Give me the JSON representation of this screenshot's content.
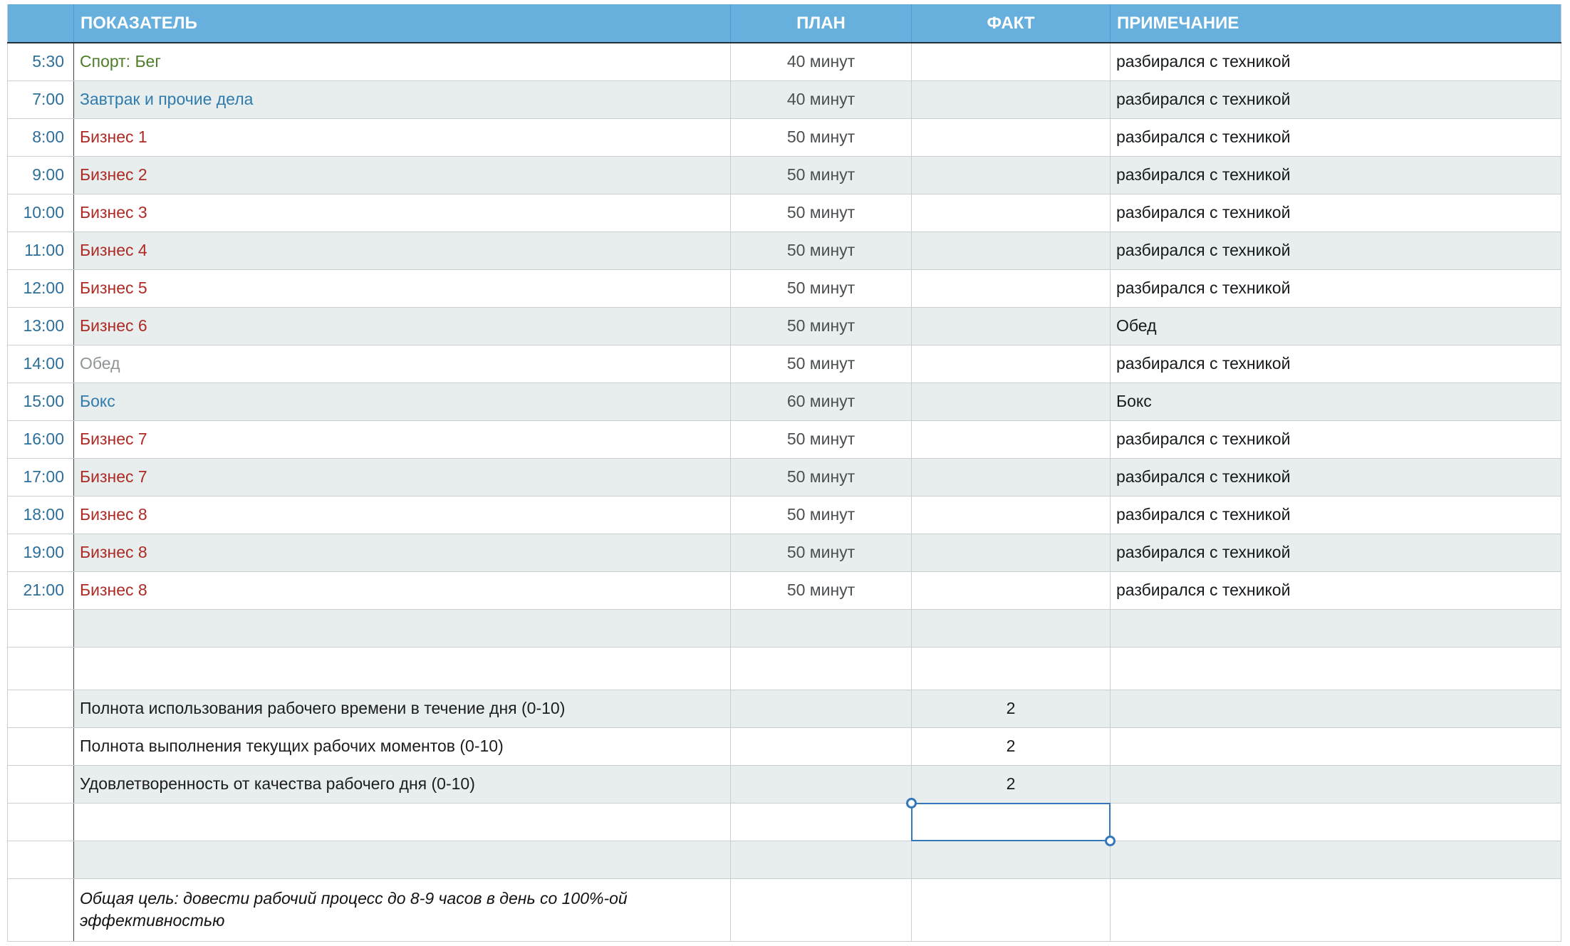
{
  "colors": {
    "header_bg": "#67AFDC",
    "header_text": "#FFFFFF",
    "zebra": "#E8EDEE",
    "grid": "#C9CFD2",
    "dark_separator": "#3F4446",
    "header_bottom_border": "#25303B",
    "header_separator": "#4E9CCB",
    "time_text": "#2D6F9B",
    "activity_green": "#4C7E27",
    "activity_blue": "#2F7CAD",
    "activity_red": "#AE2A24",
    "activity_gray": "#8F9496",
    "plan_text": "#4B4F51",
    "note_text": "#161A1C",
    "score_text": "#1B1D1F",
    "selection_blue": "#3478BB"
  },
  "table": {
    "headers": {
      "time": "",
      "indicator": "ПОКАЗАТЕЛЬ",
      "plan": "ПЛАН",
      "fact": "ФАКТ",
      "note": "ПРИМЕЧАНИЕ"
    },
    "rows": [
      {
        "type": "entry",
        "time": "5:30",
        "indicator": "Спорт: Бег",
        "indicator_color": "green",
        "plan": "40 минут",
        "fact": "",
        "note": "разбирался с техникой"
      },
      {
        "type": "entry",
        "time": "7:00",
        "indicator": "Завтрак и прочие дела",
        "indicator_color": "blue",
        "plan": "40 минут",
        "fact": "",
        "note": "разбирался с техникой"
      },
      {
        "type": "entry",
        "time": "8:00",
        "indicator": "Бизнес 1",
        "indicator_color": "red",
        "plan": "50 минут",
        "fact": "",
        "note": "разбирался с техникой"
      },
      {
        "type": "entry",
        "time": "9:00",
        "indicator": "Бизнес 2",
        "indicator_color": "red",
        "plan": "50 минут",
        "fact": "",
        "note": "разбирался с техникой"
      },
      {
        "type": "entry",
        "time": "10:00",
        "indicator": "Бизнес 3",
        "indicator_color": "red",
        "plan": "50 минут",
        "fact": "",
        "note": "разбирался с техникой"
      },
      {
        "type": "entry",
        "time": "11:00",
        "indicator": "Бизнес 4",
        "indicator_color": "red",
        "plan": "50 минут",
        "fact": "",
        "note": "разбирался с техникой"
      },
      {
        "type": "entry",
        "time": "12:00",
        "indicator": "Бизнес 5",
        "indicator_color": "red",
        "plan": "50 минут",
        "fact": "",
        "note": "разбирался с техникой"
      },
      {
        "type": "entry",
        "time": "13:00",
        "indicator": "Бизнес 6",
        "indicator_color": "red",
        "plan": "50 минут",
        "fact": "",
        "note": "Обед"
      },
      {
        "type": "entry",
        "time": "14:00",
        "indicator": "Обед",
        "indicator_color": "gray",
        "plan": "50 минут",
        "fact": "",
        "note": "разбирался с техникой"
      },
      {
        "type": "entry",
        "time": "15:00",
        "indicator": "Бокс",
        "indicator_color": "blue",
        "plan": "60 минут",
        "fact": "",
        "note": "Бокс"
      },
      {
        "type": "entry",
        "time": "16:00",
        "indicator": "Бизнес 7",
        "indicator_color": "red",
        "plan": "50 минут",
        "fact": "",
        "note": "разбирался с техникой"
      },
      {
        "type": "entry",
        "time": "17:00",
        "indicator": "Бизнес 7",
        "indicator_color": "red",
        "plan": "50 минут",
        "fact": "",
        "note": "разбирался с техникой"
      },
      {
        "type": "entry",
        "time": "18:00",
        "indicator": "Бизнес 8",
        "indicator_color": "red",
        "plan": "50 минут",
        "fact": "",
        "note": "разбирался с техникой"
      },
      {
        "type": "entry",
        "time": "19:00",
        "indicator": "Бизнес 8",
        "indicator_color": "red",
        "plan": "50 минут",
        "fact": "",
        "note": "разбирался с техникой"
      },
      {
        "type": "entry",
        "time": "21:00",
        "indicator": "Бизнес 8",
        "indicator_color": "red",
        "plan": "50 минут",
        "fact": "",
        "note": "разбирался с техникой"
      },
      {
        "type": "empty"
      },
      {
        "type": "empty",
        "variant": "tall"
      },
      {
        "type": "score",
        "indicator": "Полнота использования рабочего времени в течение дня (0-10)",
        "fact": "2"
      },
      {
        "type": "score",
        "indicator": "Полнота выполнения текущих рабочих моментов (0-10)",
        "fact": "2"
      },
      {
        "type": "score",
        "indicator": "Удовлетворенность от качества рабочего дня (0-10)",
        "fact": "2"
      },
      {
        "type": "empty",
        "selected": "fact"
      },
      {
        "type": "empty"
      },
      {
        "type": "goal",
        "indicator": "Общая цель: довести рабочий процесс до 8-9 часов в день со 100%-ой эффективностью"
      }
    ]
  }
}
